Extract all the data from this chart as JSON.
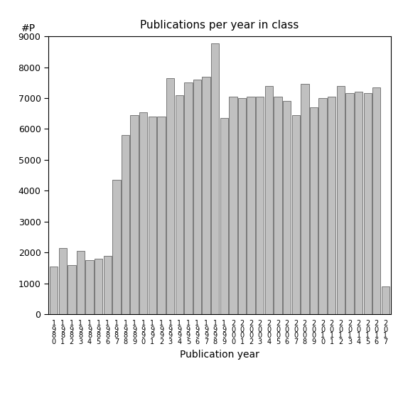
{
  "title": "Publications per year in class",
  "xlabel": "Publication year",
  "ylabel": "#P",
  "bar_color": "#c0c0c0",
  "edge_color": "#505050",
  "background_color": "#ffffff",
  "ylim": [
    0,
    9000
  ],
  "yticks": [
    0,
    1000,
    2000,
    3000,
    4000,
    5000,
    6000,
    7000,
    8000,
    9000
  ],
  "years": [
    1980,
    1981,
    1982,
    1983,
    1984,
    1985,
    1986,
    1987,
    1988,
    1989,
    1990,
    1991,
    1992,
    1993,
    1994,
    1995,
    1996,
    1997,
    1998,
    1999,
    2000,
    2001,
    2002,
    2003,
    2004,
    2005,
    2006,
    2007,
    2008,
    2009,
    2010,
    2011,
    2012,
    2013,
    2014,
    2015,
    2016,
    2017
  ],
  "values": [
    1550,
    2150,
    1600,
    2050,
    1750,
    1800,
    1900,
    4350,
    5800,
    6450,
    6550,
    6400,
    6400,
    7650,
    7100,
    7500,
    7600,
    7700,
    8780,
    6350,
    7050,
    7000,
    7050,
    7050,
    7400,
    7050,
    6900,
    6450,
    7450,
    6700,
    7000,
    7050,
    7400,
    7150,
    7200,
    7150,
    7350,
    900
  ]
}
